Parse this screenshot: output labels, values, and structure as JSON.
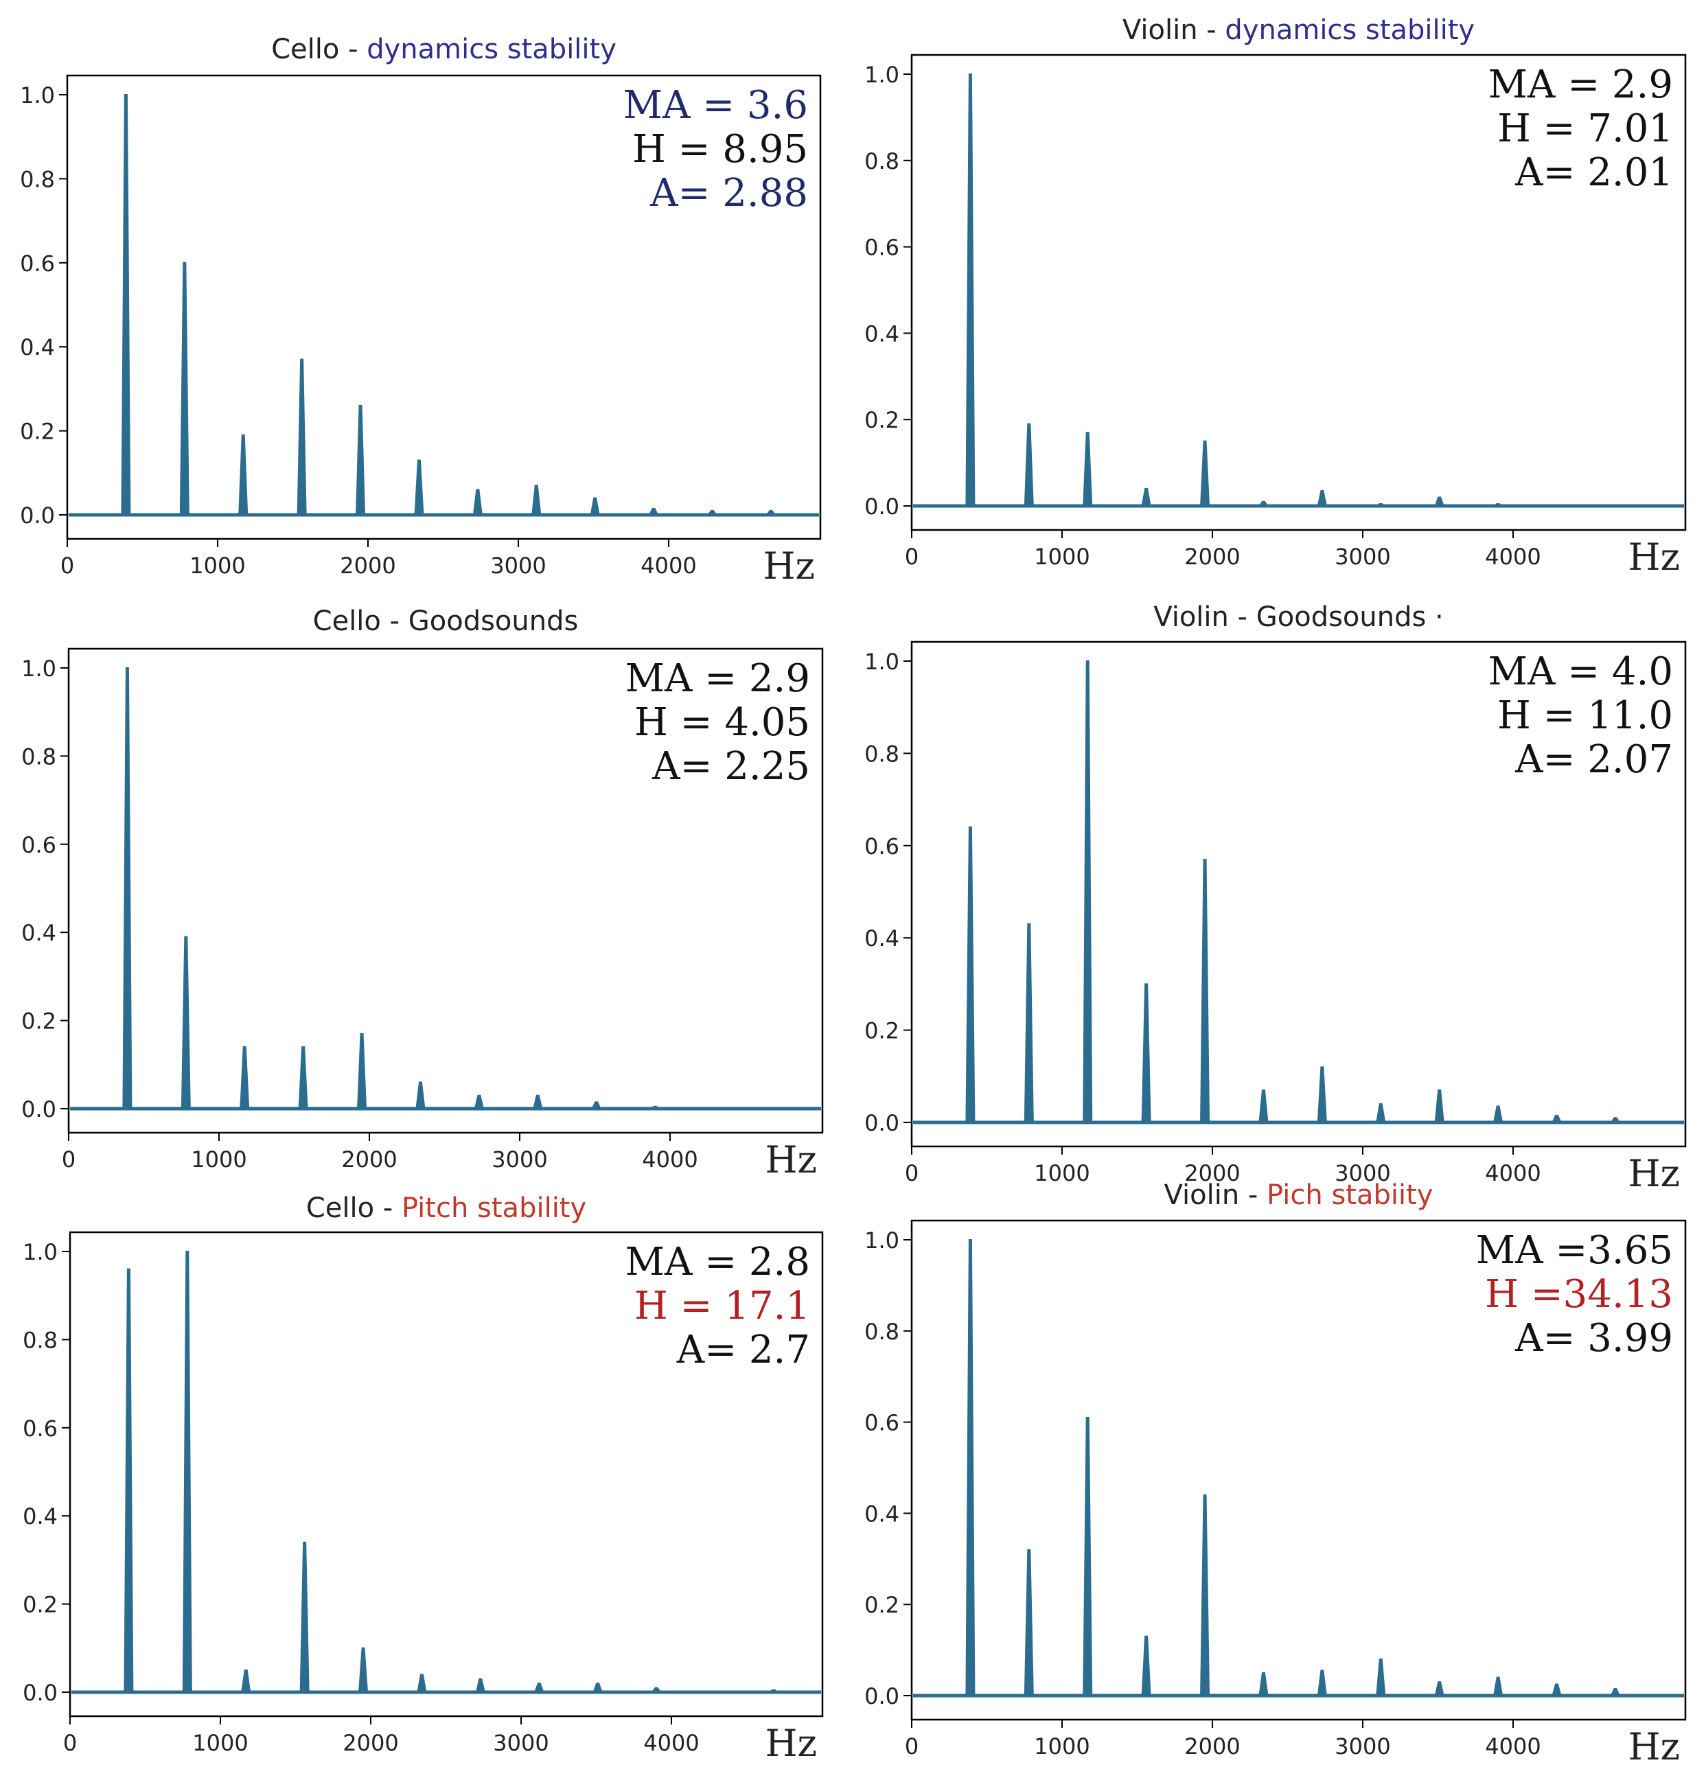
{
  "colors": {
    "line": "#2b6c8f",
    "axis": "#000000",
    "title_black": "#222222",
    "title_blue": "#2e2e8c",
    "title_red": "#c0392b",
    "stat_black": "#111111",
    "stat_blue": "#1f2a6b",
    "stat_red": "#b22222"
  },
  "x_unit": "Hz",
  "chart_data": [
    {
      "type": "line",
      "title_prefix": "Cello - ",
      "title_accent": "dynamics stability",
      "accent": "blue",
      "xlim": [
        0,
        5000
      ],
      "ylim": [
        0,
        1.0
      ],
      "xticks": [
        "0",
        "1000",
        "2000",
        "3000",
        "4000"
      ],
      "yticks": [
        "0.0",
        "0.2",
        "0.4",
        "0.6",
        "0.8",
        "1.0"
      ],
      "xlabel": "Hz",
      "stats": [
        {
          "text": "MA = 3.6",
          "color": "blue"
        },
        {
          "text": "H = 8.95",
          "color": "black"
        },
        {
          "text": "A= 2.88",
          "color": "blue"
        }
      ],
      "peaks": [
        {
          "x": 390,
          "y": 1.0
        },
        {
          "x": 780,
          "y": 0.6
        },
        {
          "x": 1170,
          "y": 0.19
        },
        {
          "x": 1560,
          "y": 0.37
        },
        {
          "x": 1950,
          "y": 0.26
        },
        {
          "x": 2340,
          "y": 0.13
        },
        {
          "x": 2730,
          "y": 0.06
        },
        {
          "x": 3120,
          "y": 0.07
        },
        {
          "x": 3510,
          "y": 0.04
        },
        {
          "x": 3900,
          "y": 0.015
        },
        {
          "x": 4290,
          "y": 0.01
        },
        {
          "x": 4680,
          "y": 0.01
        }
      ]
    },
    {
      "type": "line",
      "title_prefix": "Violin - ",
      "title_accent": "dynamics stability",
      "accent": "blue",
      "xlim": [
        0,
        5000
      ],
      "ylim": [
        0,
        1.0
      ],
      "xticks": [
        "0",
        "1000",
        "2000",
        "3000",
        "4000"
      ],
      "yticks": [
        "0.0",
        "0.2",
        "0.4",
        "0.6",
        "0.8",
        "1.0"
      ],
      "xlabel": "Hz",
      "stats": [
        {
          "text": "MA = 2.9",
          "color": "black"
        },
        {
          "text": "H = 7.01",
          "color": "black"
        },
        {
          "text": "A= 2.01",
          "color": "black"
        }
      ],
      "peaks": [
        {
          "x": 390,
          "y": 1.0
        },
        {
          "x": 780,
          "y": 0.19
        },
        {
          "x": 1170,
          "y": 0.17
        },
        {
          "x": 1560,
          "y": 0.04
        },
        {
          "x": 1950,
          "y": 0.15
        },
        {
          "x": 2340,
          "y": 0.01
        },
        {
          "x": 2730,
          "y": 0.035
        },
        {
          "x": 3120,
          "y": 0.005
        },
        {
          "x": 3510,
          "y": 0.02
        },
        {
          "x": 3900,
          "y": 0.005
        }
      ]
    },
    {
      "type": "line",
      "title_prefix": "Cello - Goodsounds",
      "title_accent": "",
      "accent": "black",
      "xlim": [
        0,
        5000
      ],
      "ylim": [
        0,
        1.0
      ],
      "xticks": [
        "0",
        "1000",
        "2000",
        "3000",
        "4000"
      ],
      "yticks": [
        "0.0",
        "0.2",
        "0.4",
        "0.6",
        "0.8",
        "1.0"
      ],
      "xlabel": "Hz",
      "stats": [
        {
          "text": "MA = 2.9",
          "color": "black"
        },
        {
          "text": "H = 4.05",
          "color": "black"
        },
        {
          "text": "A= 2.25",
          "color": "black"
        }
      ],
      "peaks": [
        {
          "x": 390,
          "y": 1.0
        },
        {
          "x": 780,
          "y": 0.39
        },
        {
          "x": 1170,
          "y": 0.14
        },
        {
          "x": 1560,
          "y": 0.14
        },
        {
          "x": 1950,
          "y": 0.17
        },
        {
          "x": 2340,
          "y": 0.06
        },
        {
          "x": 2730,
          "y": 0.03
        },
        {
          "x": 3120,
          "y": 0.03
        },
        {
          "x": 3510,
          "y": 0.015
        },
        {
          "x": 3900,
          "y": 0.005
        }
      ]
    },
    {
      "type": "line",
      "title_prefix": "Violin - Goodsounds ·",
      "title_accent": "",
      "accent": "black",
      "xlim": [
        0,
        5000
      ],
      "ylim": [
        0,
        1.0
      ],
      "xticks": [
        "0",
        "1000",
        "2000",
        "3000",
        "4000"
      ],
      "yticks": [
        "0.0",
        "0.2",
        "0.4",
        "0.6",
        "0.8",
        "1.0"
      ],
      "xlabel": "Hz",
      "stats": [
        {
          "text": "MA = 4.0",
          "color": "black"
        },
        {
          "text": "H = 11.0",
          "color": "black"
        },
        {
          "text": "A=  2.07",
          "color": "black"
        }
      ],
      "peaks": [
        {
          "x": 390,
          "y": 0.64
        },
        {
          "x": 780,
          "y": 0.43
        },
        {
          "x": 1170,
          "y": 1.0
        },
        {
          "x": 1560,
          "y": 0.3
        },
        {
          "x": 1950,
          "y": 0.57
        },
        {
          "x": 2340,
          "y": 0.07
        },
        {
          "x": 2730,
          "y": 0.12
        },
        {
          "x": 3120,
          "y": 0.04
        },
        {
          "x": 3510,
          "y": 0.07
        },
        {
          "x": 3900,
          "y": 0.035
        },
        {
          "x": 4290,
          "y": 0.015
        },
        {
          "x": 4680,
          "y": 0.01
        }
      ]
    },
    {
      "type": "line",
      "title_prefix": "Cello - ",
      "title_accent": "Pitch stability",
      "accent": "red",
      "xlim": [
        0,
        5000
      ],
      "ylim": [
        0,
        1.0
      ],
      "xticks": [
        "0",
        "1000",
        "2000",
        "3000",
        "4000"
      ],
      "yticks": [
        "0.0",
        "0.2",
        "0.4",
        "0.6",
        "0.8",
        "1.0"
      ],
      "xlabel": "Hz",
      "stats": [
        {
          "text": "MA = 2.8",
          "color": "black"
        },
        {
          "text": "H = 17.1",
          "color": "red"
        },
        {
          "text": "A= 2.7",
          "color": "black"
        }
      ],
      "peaks": [
        {
          "x": 390,
          "y": 0.96
        },
        {
          "x": 780,
          "y": 1.0
        },
        {
          "x": 1170,
          "y": 0.05
        },
        {
          "x": 1560,
          "y": 0.34
        },
        {
          "x": 1950,
          "y": 0.1
        },
        {
          "x": 2340,
          "y": 0.04
        },
        {
          "x": 2730,
          "y": 0.03
        },
        {
          "x": 3120,
          "y": 0.02
        },
        {
          "x": 3510,
          "y": 0.02
        },
        {
          "x": 3900,
          "y": 0.01
        },
        {
          "x": 4680,
          "y": 0.005
        }
      ]
    },
    {
      "type": "line",
      "title_prefix": "Violin - ",
      "title_accent": "Pich stabiity",
      "accent": "red",
      "xlim": [
        0,
        5000
      ],
      "ylim": [
        0,
        1.0
      ],
      "xticks": [
        "0",
        "1000",
        "2000",
        "3000",
        "4000"
      ],
      "yticks": [
        "0.0",
        "0.2",
        "0.4",
        "0.6",
        "0.8",
        "1.0"
      ],
      "xlabel": "Hz",
      "stats": [
        {
          "text": "MA =3.65",
          "color": "black"
        },
        {
          "text": "H =34.13",
          "color": "red"
        },
        {
          "text": "A= 3.99",
          "color": "black"
        }
      ],
      "peaks": [
        {
          "x": 390,
          "y": 1.0
        },
        {
          "x": 780,
          "y": 0.32
        },
        {
          "x": 1170,
          "y": 0.61
        },
        {
          "x": 1560,
          "y": 0.13
        },
        {
          "x": 1950,
          "y": 0.44
        },
        {
          "x": 2340,
          "y": 0.05
        },
        {
          "x": 2730,
          "y": 0.055
        },
        {
          "x": 3120,
          "y": 0.08
        },
        {
          "x": 3510,
          "y": 0.03
        },
        {
          "x": 3900,
          "y": 0.04
        },
        {
          "x": 4290,
          "y": 0.025
        },
        {
          "x": 4680,
          "y": 0.015
        }
      ]
    }
  ]
}
